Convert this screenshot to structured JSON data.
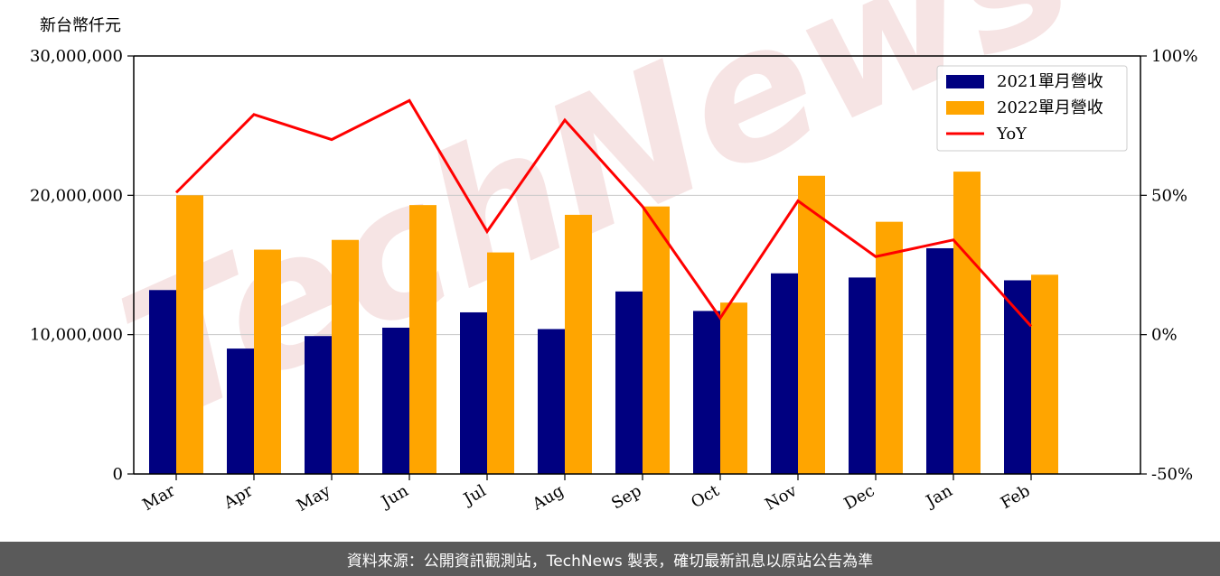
{
  "unit_label": "新台幣仟元",
  "footer": "資料來源：公開資訊觀測站，TechNews 製表，確切最新訊息以原站公告為準",
  "watermark": "TechNews",
  "colors": {
    "series_2021": "#000080",
    "series_2022": "#ffa500",
    "yoy": "#ff0000",
    "footer_bg": "#5a5a5a"
  },
  "chart_data": {
    "type": "bar",
    "categories": [
      "Mar",
      "Apr",
      "May",
      "Jun",
      "Jul",
      "Aug",
      "Sep",
      "Oct",
      "Nov",
      "Dec",
      "Jan",
      "Feb"
    ],
    "series": [
      {
        "name": "2021單月營收",
        "type": "bar",
        "axis": "left",
        "values": [
          13200000,
          9000000,
          9900000,
          10500000,
          11600000,
          10400000,
          13100000,
          11700000,
          14400000,
          14100000,
          16200000,
          13900000
        ]
      },
      {
        "name": "2022單月營收",
        "type": "bar",
        "axis": "left",
        "values": [
          20000000,
          16100000,
          16800000,
          19300000,
          15900000,
          18600000,
          19200000,
          12300000,
          21400000,
          18100000,
          21700000,
          14300000
        ]
      },
      {
        "name": "YoY",
        "type": "line",
        "axis": "right",
        "values": [
          51,
          79,
          70,
          84,
          37,
          77,
          46,
          6,
          48,
          28,
          34,
          3
        ]
      }
    ],
    "left_axis": {
      "ylim": [
        0,
        30000000
      ],
      "ticks": [
        0,
        10000000,
        20000000,
        30000000
      ],
      "tick_labels": [
        "0",
        "10,000,000",
        "20,000,000",
        "30,000,000"
      ]
    },
    "right_axis": {
      "ylim": [
        -50,
        100
      ],
      "ticks": [
        -50,
        0,
        50,
        100
      ],
      "tick_labels": [
        "-50%",
        "0%",
        "50%",
        "100%"
      ]
    },
    "grid": "horizontal",
    "legend": "top-right"
  }
}
